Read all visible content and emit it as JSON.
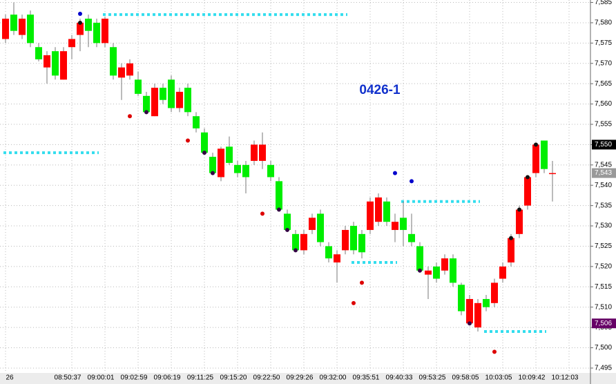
{
  "chart_data": {
    "type": "candlestick",
    "annotation": "0426-1",
    "categories": [
      "26",
      null,
      null,
      null,
      null,
      null,
      null,
      null,
      "08:50:37",
      null,
      null,
      null,
      "09:00:01",
      null,
      null,
      null,
      "09:02:59",
      null,
      null,
      null,
      "09:06:19",
      null,
      null,
      null,
      "09:11:25",
      null,
      null,
      null,
      "09:15:20",
      null,
      null,
      null,
      "09:22:50",
      null,
      null,
      null,
      "09:29:26",
      null,
      null,
      null,
      "09:32:00",
      null,
      null,
      null,
      "09:35:51",
      null,
      null,
      null,
      "09:40:33",
      null,
      null,
      null,
      "09:53:25",
      null,
      null,
      null,
      "09:58:05",
      null,
      null,
      null,
      "10:03:05",
      null,
      null,
      null,
      "10:09:42",
      null,
      null,
      null,
      "10:12:03"
    ],
    "open": [
      7576,
      7582,
      7577,
      7582,
      7574,
      7569,
      7573,
      7566,
      7574,
      7577,
      7581,
      7580,
      7575,
      7574,
      7566.5,
      7567,
      7566,
      7562,
      7557,
      7564,
      7566,
      7559,
      7564,
      7557,
      7553,
      7547,
      7542,
      7549.5,
      7545,
      7545,
      7546,
      7546,
      7545,
      7541,
      7533,
      7528,
      7524,
      7529,
      7533,
      7525,
      7521,
      7524,
      7530,
      7528,
      7529,
      7531,
      7536,
      7529,
      7532,
      7528,
      7525,
      7518,
      7520,
      7519,
      7522,
      7515.5,
      7506,
      7505,
      7512,
      7511,
      7517,
      7521,
      7528,
      7535,
      7543,
      7551,
      7543,
      null,
      null
    ],
    "high": [
      7582,
      7585,
      7582,
      7583,
      7575,
      7573,
      7574,
      7574,
      7577,
      7581,
      7582,
      7581,
      7581.5,
      7575,
      7570,
      7571,
      7568,
      7563,
      7565,
      7565,
      7567,
      7564,
      7565,
      7558,
      7554,
      7548,
      7549.5,
      7552,
      7546,
      7546,
      7551,
      7553,
      7546,
      7542,
      7534,
      7529,
      7529,
      7533,
      7534,
      7526,
      7524,
      7530,
      7531,
      7529,
      7537,
      7538,
      7537,
      7533,
      7536,
      7533,
      7526,
      7520,
      7521,
      7523,
      7523,
      7516,
      7513,
      7512,
      7513,
      7517,
      7521,
      7528,
      7535,
      7542.5,
      7550.5,
      7551,
      7546,
      null,
      null
    ],
    "low": [
      7575,
      7577,
      7576,
      7574,
      7570.5,
      7565,
      7566,
      7566,
      7571,
      7573,
      7574,
      7574,
      7574,
      7566,
      7561,
      7566,
      7562,
      7557.5,
      7557,
      7560,
      7558,
      7558,
      7557,
      7553,
      7547.5,
      7542.5,
      7541,
      7545,
      7542,
      7538,
      7545,
      7544,
      7541,
      7533.5,
      7528.5,
      7523.5,
      7523,
      7528,
      7525,
      7521,
      7516,
      7523,
      7523,
      7522,
      7528,
      7530,
      7530,
      7526,
      7525,
      7525,
      7518.5,
      7512,
      7516,
      7518,
      7515,
      7508,
      7505.5,
      7504,
      7509,
      7510,
      7516,
      7520,
      7527,
      7534,
      7542,
      7543,
      7536,
      null,
      null
    ],
    "close": [
      7581,
      7578,
      7581,
      7575,
      7571,
      7572,
      7567,
      7573,
      7576,
      7580,
      7578,
      7575,
      7581,
      7567,
      7569,
      7570,
      7562.5,
      7558,
      7564,
      7561,
      7559,
      7563,
      7558,
      7554,
      7548,
      7543,
      7549,
      7545.5,
      7543,
      7542,
      7550,
      7550,
      7542,
      7534,
      7529,
      7524,
      7528,
      7532,
      7526,
      7522,
      7523,
      7529,
      7524,
      7523.5,
      7536,
      7537,
      7531,
      7531,
      7529,
      7526,
      7519,
      7519,
      7517,
      7522,
      7516,
      7509,
      7512,
      7511,
      7510,
      7516,
      7520,
      7527,
      7534,
      7542,
      7550,
      7544,
      7543,
      null,
      null
    ],
    "up_color": "#ff0000",
    "down_color": "#00ee00",
    "level_color": "#33ddee",
    "levels": [
      {
        "value": 7582,
        "from": 12,
        "to": 41
      },
      {
        "value": 7548,
        "from": 0,
        "to": 11
      },
      {
        "value": 7536,
        "from": 48,
        "to": 57
      },
      {
        "value": 7521,
        "from": 42,
        "to": 47
      },
      {
        "value": 7504,
        "from": 58,
        "to": 65
      }
    ],
    "markers": [
      {
        "index": 9,
        "value": 7582.2,
        "color": "#0000cc"
      },
      {
        "index": 9,
        "value": 7580,
        "color": "#111111"
      },
      {
        "index": 15,
        "value": 7557,
        "color": "#dd0000"
      },
      {
        "index": 17,
        "value": 7558,
        "color": "#330044"
      },
      {
        "index": 22,
        "value": 7551,
        "color": "#dd0000"
      },
      {
        "index": 24,
        "value": 7548,
        "color": "#330044"
      },
      {
        "index": 25,
        "value": 7543,
        "color": "#330044"
      },
      {
        "index": 31,
        "value": 7533,
        "color": "#dd0000"
      },
      {
        "index": 33,
        "value": 7534,
        "color": "#330044"
      },
      {
        "index": 34,
        "value": 7529,
        "color": "#330044"
      },
      {
        "index": 35,
        "value": 7524,
        "color": "#330044"
      },
      {
        "index": 42,
        "value": 7511,
        "color": "#dd0000"
      },
      {
        "index": 43,
        "value": 7516,
        "color": "#dd0000"
      },
      {
        "index": 47,
        "value": 7543,
        "color": "#0000cc"
      },
      {
        "index": 49,
        "value": 7541,
        "color": "#0000cc"
      },
      {
        "index": 50,
        "value": 7519,
        "color": "#330044"
      },
      {
        "index": 56,
        "value": 7506,
        "color": "#330044"
      },
      {
        "index": 59,
        "value": 7499,
        "color": "#dd0000"
      },
      {
        "index": 61,
        "value": 7527,
        "color": "#111111"
      },
      {
        "index": 62,
        "value": 7534,
        "color": "#111111"
      },
      {
        "index": 63,
        "value": 7542,
        "color": "#111111"
      },
      {
        "index": 64,
        "value": 7550,
        "color": "#111111"
      }
    ],
    "price_tags": [
      {
        "value": 7550,
        "label": "7,550",
        "color": "#000000"
      },
      {
        "value": 7543,
        "label": "7,543",
        "color": "#999999"
      },
      {
        "value": 7506,
        "label": "7,506",
        "color": "#660066"
      }
    ],
    "ylim": [
      7493.8,
      7585.6
    ],
    "yticks": [
      {
        "value": 7585,
        "label": "7,585"
      },
      {
        "value": 7580,
        "label": "7,580"
      },
      {
        "value": 7575,
        "label": "7,575"
      },
      {
        "value": 7570,
        "label": "7,570"
      },
      {
        "value": 7565,
        "label": "7,565"
      },
      {
        "value": 7560,
        "label": "7,560"
      },
      {
        "value": 7555,
        "label": "7,555"
      },
      {
        "value": 7550,
        "label": "7,550"
      },
      {
        "value": 7545,
        "label": "7,545"
      },
      {
        "value": 7540,
        "label": "7,540"
      },
      {
        "value": 7535,
        "label": "7,535"
      },
      {
        "value": 7530,
        "label": "7,530"
      },
      {
        "value": 7525,
        "label": "7,525"
      },
      {
        "value": 7520,
        "label": "7,520"
      },
      {
        "value": 7515,
        "label": "7,515"
      },
      {
        "value": 7510,
        "label": "7,510"
      },
      {
        "value": 7505,
        "label": "7,505"
      },
      {
        "value": 7500,
        "label": "7,500"
      },
      {
        "value": 7495,
        "label": "7,495"
      }
    ],
    "grid": true
  }
}
